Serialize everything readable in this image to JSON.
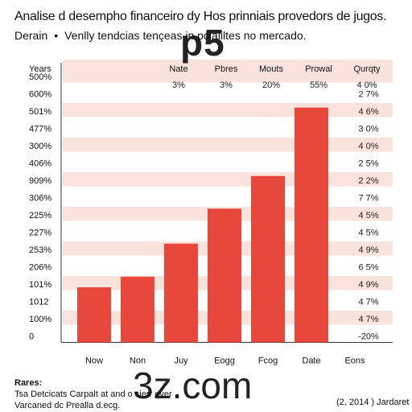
{
  "title": "Analise d desempho financeiro dy Hos prinniais provedors de jugos.",
  "subtitle": {
    "left": "Derain",
    "right": "Venlly tendcias tençeas in pclaiiltes no mercado."
  },
  "watermarks": {
    "top": "p5",
    "bottom": "3z.com"
  },
  "row_label_header": "Years",
  "column_headers": [
    "Nate",
    "Pbres",
    "Mouts",
    "Prowal",
    "Qurqty"
  ],
  "header_row_values": [
    "3%",
    "3%",
    "20%",
    "55%",
    "4 0%"
  ],
  "right_values": [
    "2 7%",
    "4 6%",
    "3 0%",
    "4 0%",
    "2 5%",
    "2 2%",
    "7 7%",
    "4 5%",
    "4 5%",
    "4 9%",
    "6 5%",
    "4 9%",
    "4 7%",
    "4 7%",
    "-20%"
  ],
  "footer": {
    "label": "Rares:",
    "line1": "Tsa Detcicats Carpalt at and o sierr  ever",
    "line2": "Varcaned dc Prealla d.ecg.",
    "right": "(2, 2014 ) Jardaret"
  },
  "colors": {
    "bar": "#e8473b",
    "band": "#fbe3dd"
  },
  "chart_data": {
    "type": "bar",
    "categories": [
      "Now",
      "Non",
      "Juy",
      "Eogg",
      "Fcog",
      "Date",
      "Eons"
    ],
    "values": [
      14.5,
      17.3,
      26.0,
      35.2,
      43.8,
      61.8,
      0
    ],
    "ylim": [
      0,
      70
    ],
    "y_tick_labels": [
      "500%",
      "600%",
      "501%",
      "477%",
      "300%",
      "406%",
      "909%",
      "306%",
      "225%",
      "227%",
      "253%",
      "206%",
      "101%",
      "1012",
      "100%",
      "0"
    ],
    "grid": "alternating horizontal bands",
    "legend": "none"
  }
}
